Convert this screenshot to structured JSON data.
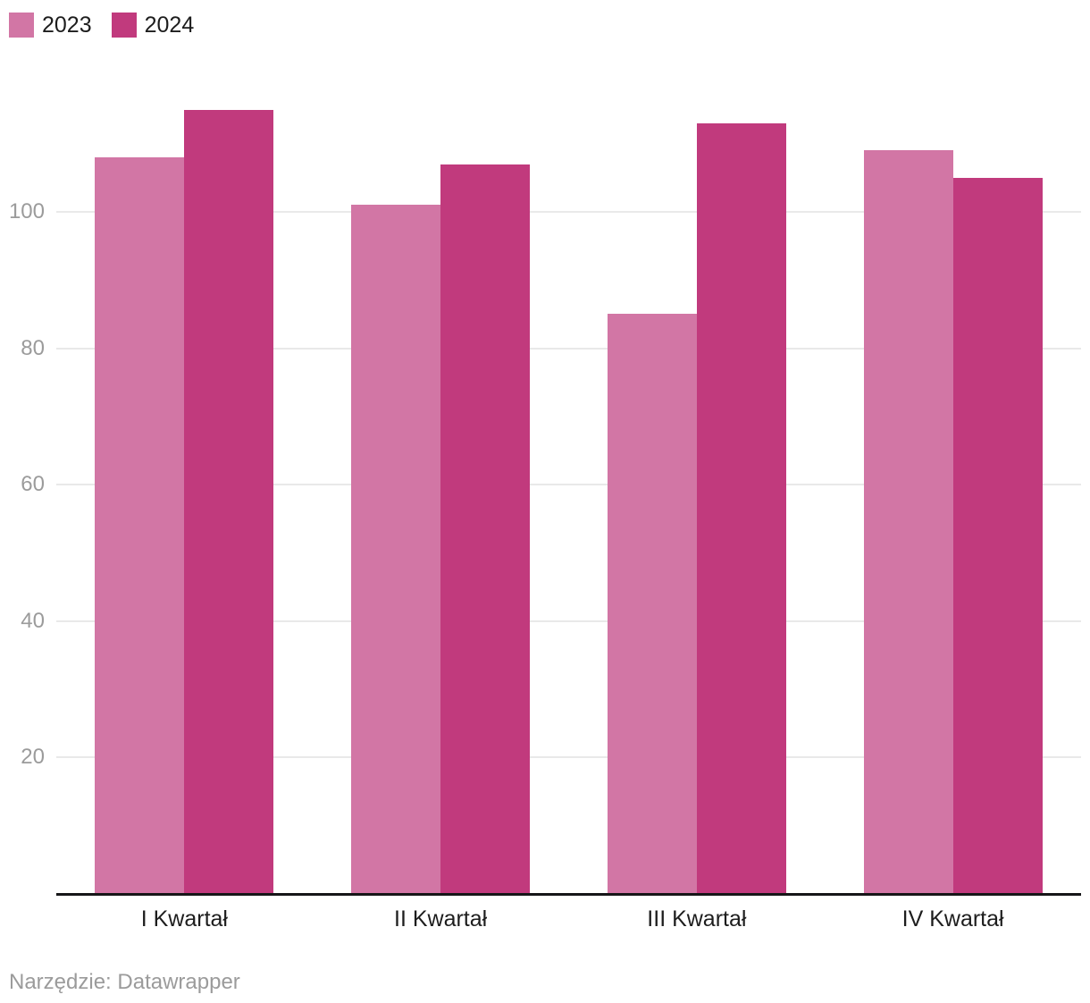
{
  "legend": {
    "items": [
      {
        "label": "2023",
        "color": "#d276a5"
      },
      {
        "label": "2024",
        "color": "#c13a7d"
      }
    ]
  },
  "chart_data": {
    "type": "bar",
    "title": "",
    "categories": [
      "I Kwartał",
      "II Kwartał",
      "III Kwartał",
      "IV Kwartał"
    ],
    "series": [
      {
        "name": "2023",
        "color": "#d276a5",
        "values": [
          108,
          101,
          85,
          109
        ]
      },
      {
        "name": "2024",
        "color": "#c13a7d",
        "values": [
          115,
          107,
          113,
          105
        ]
      }
    ],
    "xlabel": "",
    "ylabel": "",
    "yticks": [
      20,
      40,
      60,
      80,
      100
    ],
    "ylim": [
      0,
      120
    ],
    "grid": true,
    "legend_position": "top-left"
  },
  "footer": {
    "attribution": "Narzędzie: Datawrapper"
  },
  "colors": {
    "grid": "#e9e9e9",
    "axis": "#161618",
    "tick_label": "#9b9b9b",
    "footer_text": "#9b9b9b"
  }
}
